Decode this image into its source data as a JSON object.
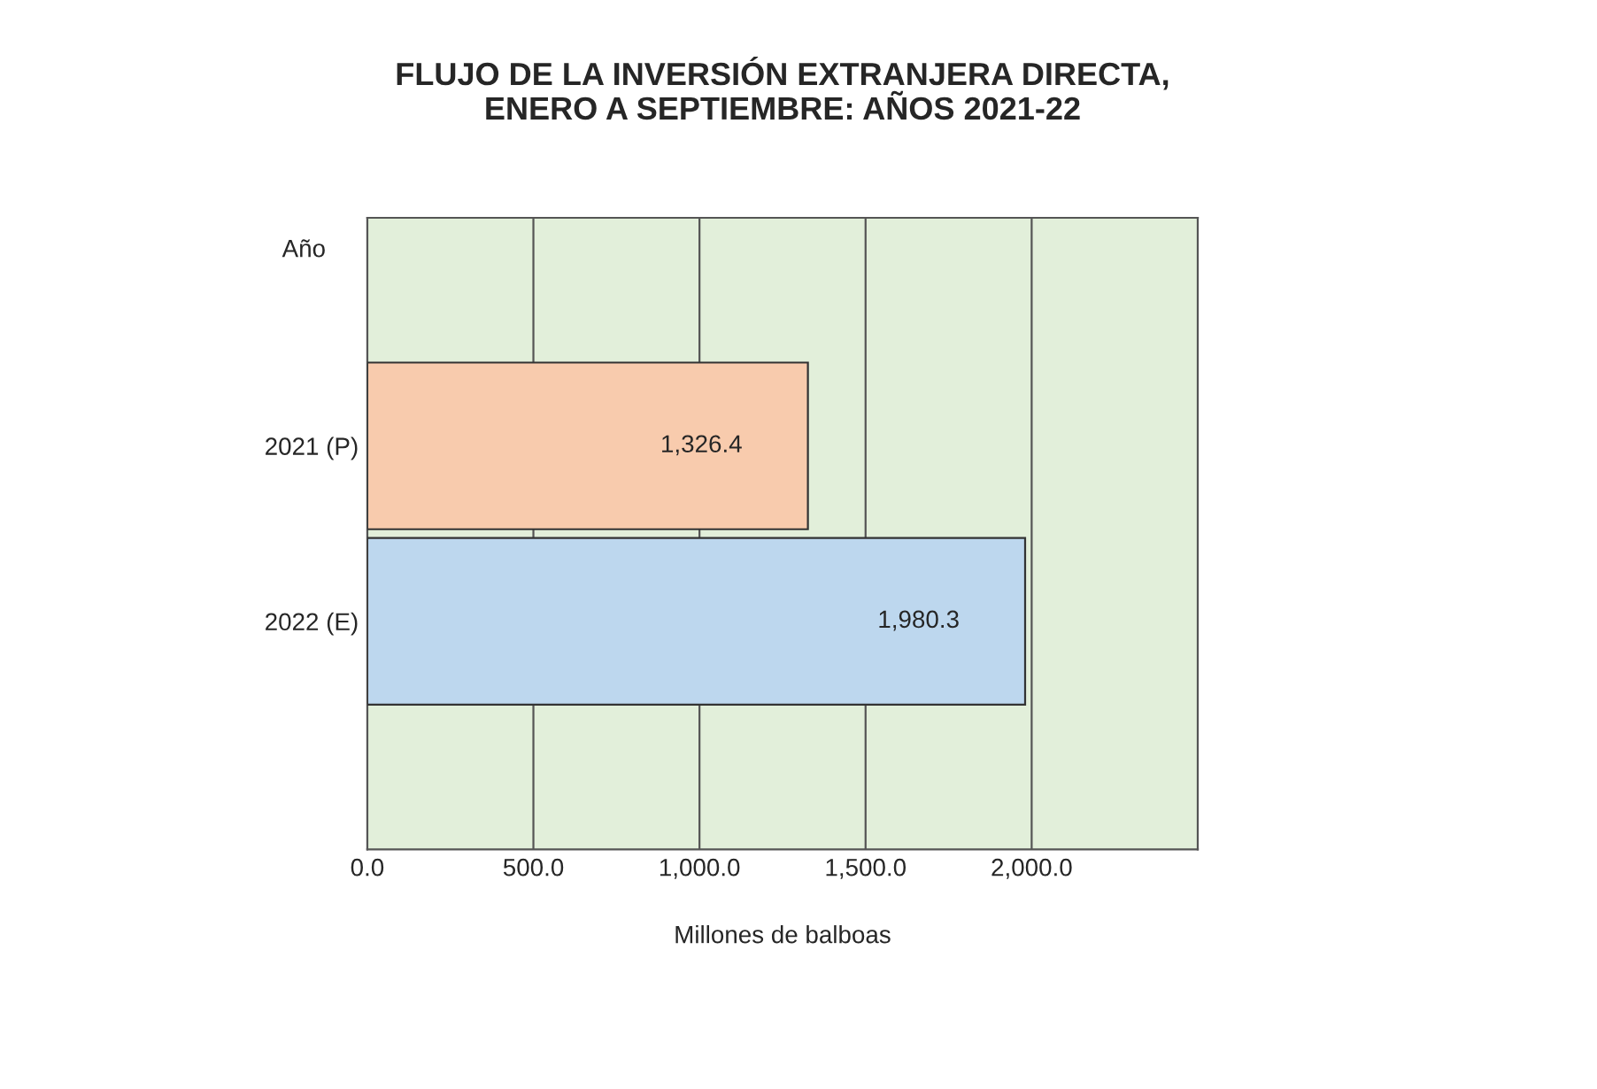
{
  "chart_data": {
    "type": "bar",
    "orientation": "horizontal",
    "title": "FLUJO DE LA INVERSIÓN EXTRANJERA DIRECTA,\nENERO A SEPTIEMBRE: AÑOS 2021-22",
    "xlabel": "Millones de balboas",
    "ylabel": "Año",
    "categories": [
      "2021 (P)",
      "2022 (E)"
    ],
    "values": [
      1326.4,
      1980.3
    ],
    "colors": [
      "#f8cbad",
      "#bdd7ee"
    ],
    "value_labels": [
      "1,326.4",
      "1,980.3"
    ],
    "xlim": [
      0,
      2500
    ],
    "xticks": [
      {
        "value": 0,
        "label": "0.0"
      },
      {
        "value": 500,
        "label": "500.0"
      },
      {
        "value": 1000,
        "label": "1,000.0"
      },
      {
        "value": 1500,
        "label": "1,500.0"
      },
      {
        "value": 2000,
        "label": "2,000.0"
      }
    ],
    "grid": "x"
  }
}
